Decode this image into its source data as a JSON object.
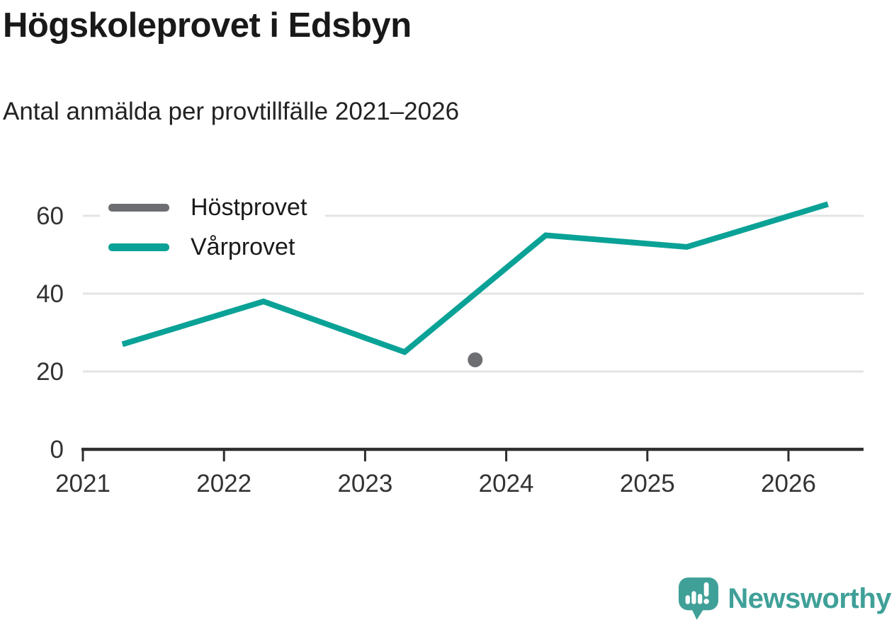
{
  "colors": {
    "axis": "#2e2e2e",
    "grid": "#e4e4e4",
    "tick_text": "#333333",
    "accent_teal": "#0aa296",
    "muted_gray": "#6d6e71",
    "brand_teal": "#3fa098"
  },
  "chart_data": {
    "type": "line",
    "title": "Högskoleprovet i Edsbyn",
    "subtitle": "Antal anmälda per provtillfälle 2021–2026",
    "xlabel": "",
    "ylabel": "",
    "x_ticks": [
      2021,
      2022,
      2023,
      2024,
      2025,
      2026
    ],
    "y_ticks": [
      0,
      20,
      40,
      60
    ],
    "ylim": [
      0,
      66
    ],
    "xlim": [
      2021,
      2026.55
    ],
    "grid": "horizontal",
    "legend_position": "inside-top-left",
    "series": [
      {
        "name": "Höstprovet",
        "type": "scatter",
        "color": "#6d6e71",
        "points": [
          {
            "x": 2023.78,
            "y": 23
          }
        ]
      },
      {
        "name": "Vårprovet",
        "type": "line",
        "color": "#0aa296",
        "points": [
          {
            "x": 2021.28,
            "y": 27
          },
          {
            "x": 2022.28,
            "y": 38
          },
          {
            "x": 2023.28,
            "y": 25
          },
          {
            "x": 2024.28,
            "y": 55
          },
          {
            "x": 2025.28,
            "y": 52
          },
          {
            "x": 2026.28,
            "y": 63
          }
        ]
      }
    ]
  },
  "footer": {
    "brand": "Newsworthy"
  }
}
